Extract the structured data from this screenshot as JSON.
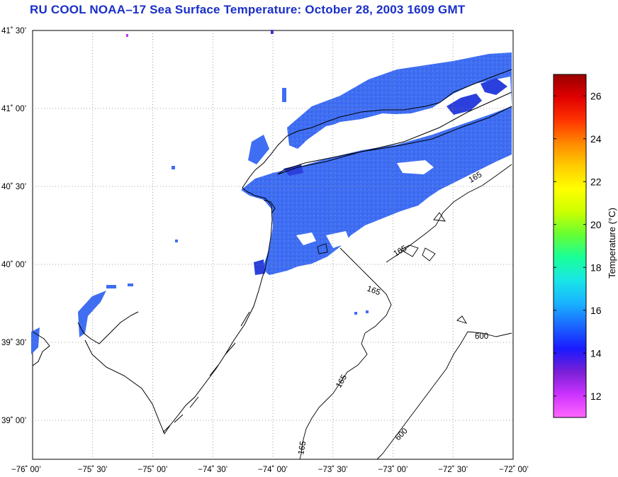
{
  "title": "RU COOL  NOAA–17  Sea Surface Temperature:  October 28, 2003 1609 GMT",
  "lat_ticks": [
    {
      "value": 41.5,
      "label": "41˚ 30’"
    },
    {
      "value": 41.0,
      "label": "41˚ 00’"
    },
    {
      "value": 40.5,
      "label": "40˚ 30’"
    },
    {
      "value": 40.0,
      "label": "40˚ 00’"
    },
    {
      "value": 39.5,
      "label": "39˚ 30’"
    },
    {
      "value": 39.0,
      "label": "39˚ 00’"
    }
  ],
  "lon_ticks": [
    {
      "value": -76.0,
      "label": "−76˚ 00’"
    },
    {
      "value": -75.5,
      "label": "−75˚ 30’"
    },
    {
      "value": -75.0,
      "label": "−75˚ 00’"
    },
    {
      "value": -74.5,
      "label": "−74˚ 30’"
    },
    {
      "value": -74.0,
      "label": "−74˚ 00’"
    },
    {
      "value": -73.5,
      "label": "−73˚ 30’"
    },
    {
      "value": -73.0,
      "label": "−73˚ 00’"
    },
    {
      "value": -72.5,
      "label": "−72˚ 30’"
    },
    {
      "value": -72.0,
      "label": "−72˚ 00’"
    }
  ],
  "extent": {
    "lon_min": -76.0,
    "lon_max": -72.0,
    "lat_min": 38.75,
    "lat_max": 41.5
  },
  "colorbar": {
    "title": "Temperature (°C)",
    "min": 11,
    "max": 27,
    "ticks": [
      "12",
      "14",
      "16",
      "18",
      "20",
      "22",
      "24",
      "26"
    ],
    "colors": [
      "#ff66ff",
      "#cc33ff",
      "#7a1fd6",
      "#1a1aff",
      "#1a66ff",
      "#19b3ff",
      "#19e6e6",
      "#19ff99",
      "#66ff33",
      "#ccff00",
      "#ffff00",
      "#ffcc00",
      "#ff8800",
      "#ff3300",
      "#e00000",
      "#990000"
    ]
  },
  "isobaths": [
    {
      "label": "165"
    },
    {
      "label": "165"
    },
    {
      "label": "165"
    },
    {
      "label": "165"
    },
    {
      "label": "165"
    },
    {
      "label": "600"
    },
    {
      "label": "600"
    }
  ],
  "sst_color": "#3f6ef2",
  "sst_dark_color": "#2a3fdc"
}
